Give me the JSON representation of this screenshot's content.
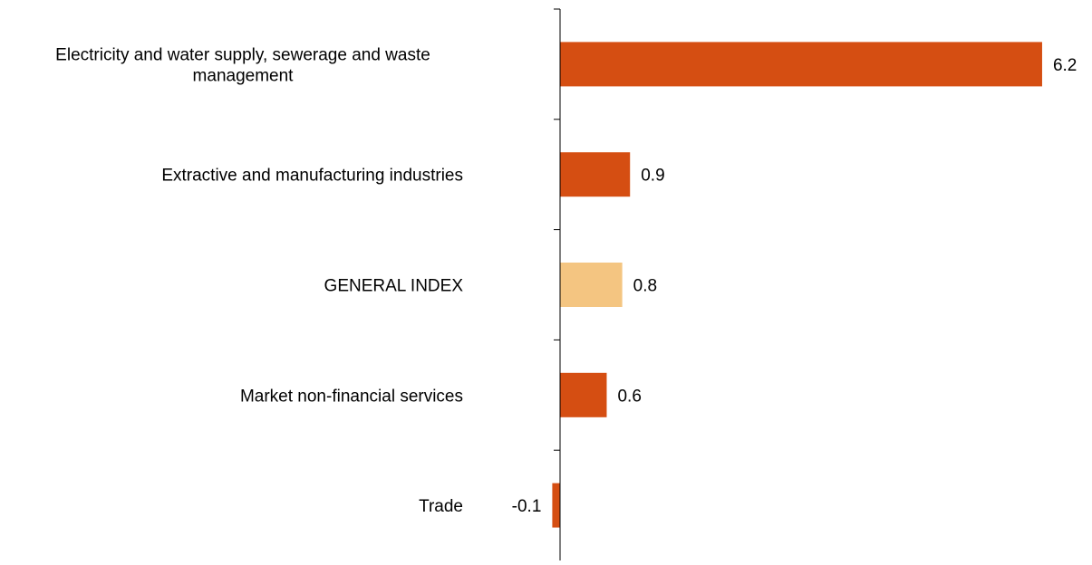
{
  "chart_data": {
    "type": "bar",
    "orientation": "horizontal",
    "title": "",
    "xlabel": "",
    "ylabel": "",
    "xlim": [
      -0.1,
      6.2
    ],
    "grid": false,
    "legend": "none",
    "categories": [
      [
        "Electricity and water supply, sewerage and waste",
        "management"
      ],
      [
        "Extractive and manufacturing industries"
      ],
      [
        "GENERAL INDEX"
      ],
      [
        "Market non-financial services"
      ],
      [
        "Trade"
      ]
    ],
    "values": [
      6.2,
      0.9,
      0.8,
      0.6,
      -0.1
    ],
    "value_labels": [
      "6.2",
      "0.9",
      "0.8",
      "0.6",
      "-0.1"
    ],
    "colors": [
      "#d54e12",
      "#d54e12",
      "#f4c581",
      "#d54e12",
      "#d54e12"
    ],
    "axis_color": "#000000"
  }
}
